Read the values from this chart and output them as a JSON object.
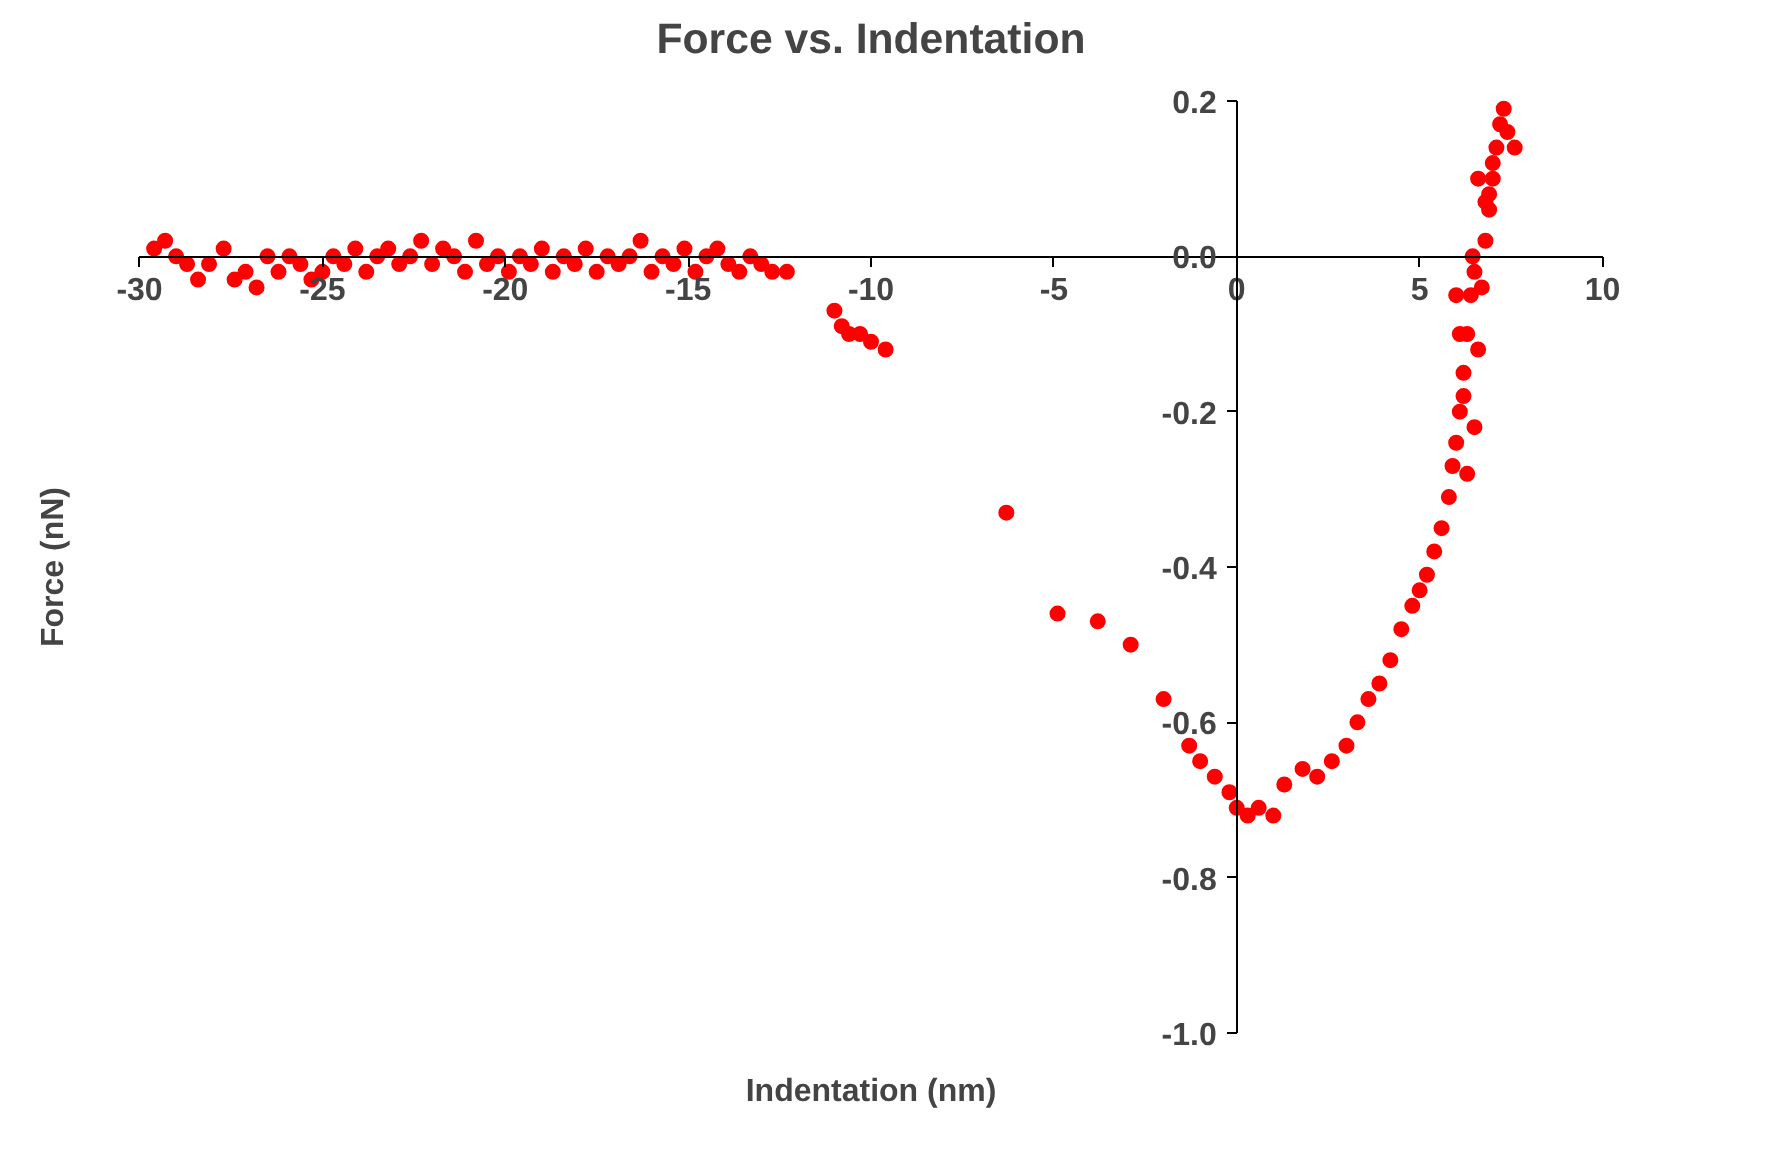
{
  "chart_data": {
    "type": "scatter",
    "title": "Force vs. Indentation",
    "xlabel": "Indentation (nm)",
    "ylabel": "Force (nN)",
    "x": [
      -29.6,
      -29.3,
      -29.0,
      -28.7,
      -28.4,
      -28.1,
      -27.7,
      -27.4,
      -27.1,
      -26.8,
      -26.5,
      -26.2,
      -25.9,
      -25.6,
      -25.3,
      -25.0,
      -24.7,
      -24.4,
      -24.1,
      -23.8,
      -23.5,
      -23.2,
      -22.9,
      -22.6,
      -22.3,
      -22.0,
      -21.7,
      -21.4,
      -21.1,
      -20.8,
      -20.5,
      -20.2,
      -19.9,
      -19.6,
      -19.3,
      -19.0,
      -18.7,
      -18.4,
      -18.1,
      -17.8,
      -17.5,
      -17.2,
      -16.9,
      -16.6,
      -16.3,
      -16.0,
      -15.7,
      -15.4,
      -15.1,
      -14.8,
      -14.5,
      -14.2,
      -13.9,
      -13.6,
      -13.3,
      -13.0,
      -12.7,
      -12.3,
      -11.0,
      -10.8,
      -10.6,
      -10.3,
      -10.0,
      -9.6,
      -6.3,
      -4.9,
      -3.8,
      -2.9,
      -2.0,
      -1.3,
      -1.0,
      -0.6,
      -0.2,
      0.0,
      0.3,
      0.6,
      1.0,
      1.3,
      1.8,
      2.2,
      2.6,
      3.0,
      3.3,
      3.6,
      3.9,
      4.2,
      4.5,
      4.8,
      5.0,
      5.2,
      5.4,
      5.6,
      5.8,
      5.9,
      6.0,
      6.1,
      6.2,
      6.3,
      6.4,
      6.45,
      6.0,
      6.1,
      6.2,
      6.3,
      6.5,
      6.6,
      6.7,
      6.8,
      6.9,
      7.0,
      7.1,
      7.2,
      7.3,
      7.4,
      7.6,
      6.6,
      6.8,
      7.0,
      6.9,
      6.5
    ],
    "values": [
      0.01,
      0.02,
      0.0,
      -0.01,
      -0.03,
      -0.01,
      0.01,
      -0.03,
      -0.02,
      -0.04,
      0.0,
      -0.02,
      0.0,
      -0.01,
      -0.03,
      -0.02,
      0.0,
      -0.01,
      0.01,
      -0.02,
      0.0,
      0.01,
      -0.01,
      0.0,
      0.02,
      -0.01,
      0.01,
      0.0,
      -0.02,
      0.02,
      -0.01,
      0.0,
      -0.02,
      0.0,
      -0.01,
      0.01,
      -0.02,
      0.0,
      -0.01,
      0.01,
      -0.02,
      0.0,
      -0.01,
      0.0,
      0.02,
      -0.02,
      0.0,
      -0.01,
      0.01,
      -0.02,
      0.0,
      0.01,
      -0.01,
      -0.02,
      0.0,
      -0.01,
      -0.02,
      -0.02,
      -0.07,
      -0.09,
      -0.1,
      -0.1,
      -0.11,
      -0.12,
      -0.33,
      -0.46,
      -0.47,
      -0.5,
      -0.57,
      -0.63,
      -0.65,
      -0.67,
      -0.69,
      -0.71,
      -0.72,
      -0.71,
      -0.72,
      -0.68,
      -0.66,
      -0.67,
      -0.65,
      -0.63,
      -0.6,
      -0.57,
      -0.55,
      -0.52,
      -0.48,
      -0.45,
      -0.43,
      -0.41,
      -0.38,
      -0.35,
      -0.31,
      -0.27,
      -0.24,
      -0.2,
      -0.15,
      -0.1,
      -0.05,
      0.0,
      -0.05,
      -0.1,
      -0.18,
      -0.28,
      -0.22,
      -0.12,
      -0.04,
      0.02,
      0.06,
      0.1,
      0.14,
      0.17,
      0.19,
      0.16,
      0.14,
      0.1,
      0.07,
      0.12,
      0.08,
      -0.02
    ],
    "color": "#ff0000",
    "marker": "circle",
    "grid": false,
    "xlim": [
      -30,
      10
    ],
    "ylim": [
      -1.0,
      0.2
    ],
    "xticks": [
      -30,
      -25,
      -20,
      -15,
      -10,
      -5,
      0,
      5,
      10
    ],
    "yticks": [
      {
        "value": -1.0,
        "label": "-1.0"
      },
      -0.8,
      -0.6,
      -0.4,
      -0.2,
      {
        "value": 0,
        "label": "0.0"
      },
      0.2
    ]
  }
}
